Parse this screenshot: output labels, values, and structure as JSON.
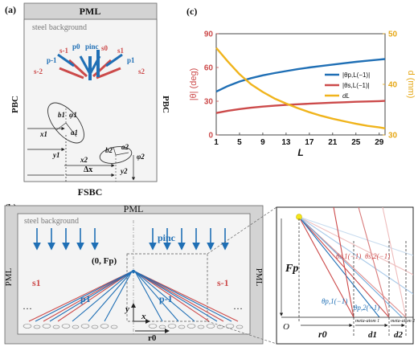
{
  "panel_a": {
    "label": "(a)",
    "top": "PML",
    "bottom": "FSBC",
    "left": "PBC",
    "right": "PBC",
    "background_label": "steel background",
    "beams": {
      "s_2": "s-2",
      "p_1": "p-1",
      "s_1": "s-1",
      "p0": "p0",
      "pinc": "pinc",
      "s0": "s0",
      "s1": "s1",
      "p1": "p1",
      "s2": "s2"
    },
    "dims": {
      "b1": "b1",
      "phi1": "φ1",
      "a1": "a1",
      "x1": "x1",
      "y1": "y1",
      "x2": "x2",
      "b2": "b2",
      "a2": "a2",
      "phi2": "φ2",
      "dx": "Δx",
      "y2": "y2"
    }
  },
  "panel_b": {
    "label": "(b)",
    "top": "PML",
    "left": "PML",
    "right": "PML",
    "background_label": "steel background",
    "pinc": "pinc",
    "focus": "(0, Fp)",
    "s1": "s1",
    "p1": "p1",
    "p_1": "p-1",
    "s_1": "s-1",
    "dots_left": "···",
    "dots_right": "···",
    "axis_y": "y",
    "axis_x": "x",
    "r0": "r0"
  },
  "panel_zoom": {
    "Fp": "Fp",
    "O": "O",
    "r0": "r0",
    "d1": "d1",
    "d2": "d2",
    "meta1": "meta-atom 1",
    "meta2": "meta-atom 2",
    "theta_s1": "θs,1(−1)",
    "theta_s2": "θs,2(−1)",
    "theta_p1": "θp,1(−1)",
    "theta_p2": "θp,2(−1)"
  },
  "panel_c": {
    "label": "(c)",
    "chart_data": {
      "type": "line",
      "xlabel": "L",
      "ylabel_left": "|θ| (deg)",
      "ylabel_right": "d (mm)",
      "x_ticks": [
        1,
        5,
        9,
        13,
        17,
        21,
        25,
        29
      ],
      "y_left_ticks": [
        0,
        30,
        60,
        90
      ],
      "y_right_ticks": [
        30,
        40,
        50
      ],
      "xlim": [
        1,
        30
      ],
      "ylim_left": [
        0,
        90
      ],
      "ylim_right": [
        30,
        50
      ],
      "legend": [
        "|θp,L(−1)|",
        "|θs,L(−1)|",
        "dL"
      ],
      "colors": {
        "theta_p": "#1f6fb5",
        "theta_s": "#cc4a4a",
        "d": "#f0b41c",
        "left_axis": "#cc4a4a",
        "right_axis": "#e6a817"
      },
      "x": [
        1,
        3,
        5,
        7,
        9,
        11,
        13,
        15,
        17,
        19,
        21,
        23,
        25,
        27,
        29,
        30
      ],
      "series": [
        {
          "name": "|θp,L(−1)|",
          "axis": "left",
          "values": [
            38.5,
            43.5,
            47.5,
            50.5,
            53.0,
            55.0,
            56.8,
            58.5,
            60.0,
            61.3,
            62.6,
            63.8,
            65.0,
            66.0,
            67.0,
            67.5
          ]
        },
        {
          "name": "|θs,L(−1)|",
          "axis": "left",
          "values": [
            19.5,
            21.5,
            23.0,
            24.2,
            25.2,
            26.0,
            26.7,
            27.3,
            27.8,
            28.3,
            28.7,
            29.1,
            29.5,
            29.8,
            30.1,
            30.3
          ]
        },
        {
          "name": "dL",
          "axis": "right",
          "values": [
            47.2,
            44.5,
            42.0,
            40.0,
            38.5,
            37.2,
            36.2,
            35.3,
            34.5,
            33.8,
            33.2,
            32.7,
            32.2,
            31.8,
            31.5,
            31.3
          ]
        }
      ]
    }
  }
}
